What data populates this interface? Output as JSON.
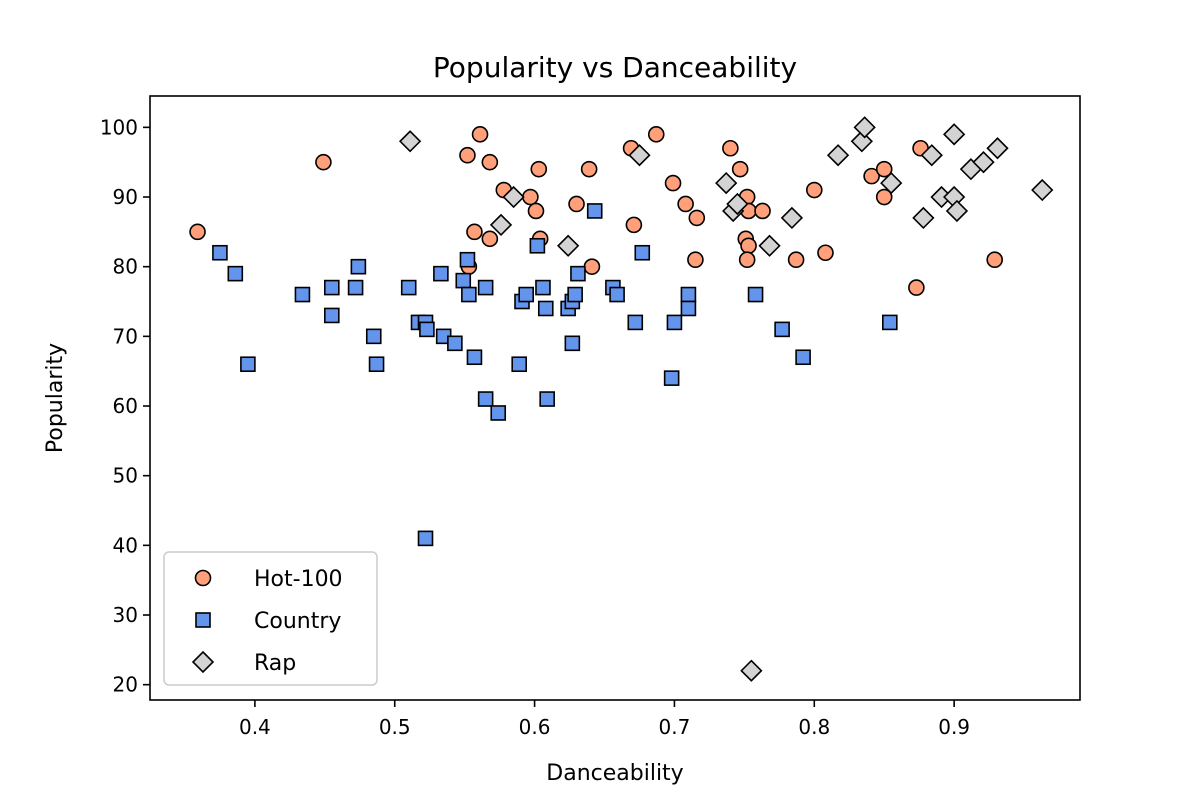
{
  "chart_data": {
    "type": "scatter",
    "title": "Popularity vs Danceability",
    "xlabel": "Danceability",
    "ylabel": "Popularity",
    "xlim": [
      0.325,
      0.99
    ],
    "ylim": [
      17.8,
      104.5
    ],
    "xticks": [
      "0.4",
      "0.5",
      "0.6",
      "0.7",
      "0.8",
      "0.9"
    ],
    "yticks": [
      "20",
      "30",
      "40",
      "50",
      "60",
      "70",
      "80",
      "90",
      "100"
    ],
    "grid": false,
    "legend_position": "lower-left",
    "series": [
      {
        "name": "Hot-100",
        "marker": "circle",
        "color": "#FFA07A",
        "points": [
          [
            0.359,
            85
          ],
          [
            0.449,
            95
          ],
          [
            0.552,
            96
          ],
          [
            0.553,
            80
          ],
          [
            0.557,
            85
          ],
          [
            0.561,
            99
          ],
          [
            0.568,
            84
          ],
          [
            0.568,
            95
          ],
          [
            0.578,
            91
          ],
          [
            0.597,
            90
          ],
          [
            0.601,
            88
          ],
          [
            0.603,
            94
          ],
          [
            0.604,
            84
          ],
          [
            0.63,
            89
          ],
          [
            0.639,
            94
          ],
          [
            0.641,
            80
          ],
          [
            0.669,
            97
          ],
          [
            0.671,
            86
          ],
          [
            0.687,
            99
          ],
          [
            0.699,
            92
          ],
          [
            0.708,
            89
          ],
          [
            0.716,
            87
          ],
          [
            0.715,
            81
          ],
          [
            0.74,
            97
          ],
          [
            0.747,
            94
          ],
          [
            0.751,
            84
          ],
          [
            0.752,
            90
          ],
          [
            0.753,
            88
          ],
          [
            0.753,
            83
          ],
          [
            0.752,
            81
          ],
          [
            0.763,
            88
          ],
          [
            0.787,
            81
          ],
          [
            0.8,
            91
          ],
          [
            0.808,
            82
          ],
          [
            0.841,
            93
          ],
          [
            0.85,
            94
          ],
          [
            0.85,
            90
          ],
          [
            0.873,
            77
          ],
          [
            0.876,
            97
          ],
          [
            0.929,
            81
          ]
        ]
      },
      {
        "name": "Country",
        "marker": "square",
        "color": "#6495ED",
        "points": [
          [
            0.375,
            82
          ],
          [
            0.386,
            79
          ],
          [
            0.395,
            66
          ],
          [
            0.434,
            76
          ],
          [
            0.455,
            77
          ],
          [
            0.455,
            73
          ],
          [
            0.472,
            77
          ],
          [
            0.474,
            80
          ],
          [
            0.485,
            70
          ],
          [
            0.487,
            66
          ],
          [
            0.51,
            77
          ],
          [
            0.517,
            72
          ],
          [
            0.522,
            72
          ],
          [
            0.523,
            71
          ],
          [
            0.522,
            41
          ],
          [
            0.533,
            79
          ],
          [
            0.535,
            70
          ],
          [
            0.543,
            69
          ],
          [
            0.549,
            78
          ],
          [
            0.552,
            81
          ],
          [
            0.553,
            76
          ],
          [
            0.557,
            67
          ],
          [
            0.565,
            77
          ],
          [
            0.565,
            61
          ],
          [
            0.574,
            59
          ],
          [
            0.589,
            66
          ],
          [
            0.591,
            75
          ],
          [
            0.594,
            76
          ],
          [
            0.602,
            83
          ],
          [
            0.606,
            77
          ],
          [
            0.608,
            74
          ],
          [
            0.609,
            61
          ],
          [
            0.624,
            74
          ],
          [
            0.627,
            75
          ],
          [
            0.627,
            69
          ],
          [
            0.629,
            76
          ],
          [
            0.631,
            79
          ],
          [
            0.643,
            88
          ],
          [
            0.656,
            77
          ],
          [
            0.659,
            76
          ],
          [
            0.672,
            72
          ],
          [
            0.677,
            82
          ],
          [
            0.698,
            64
          ],
          [
            0.7,
            72
          ],
          [
            0.71,
            76
          ],
          [
            0.71,
            74
          ],
          [
            0.758,
            76
          ],
          [
            0.777,
            71
          ],
          [
            0.792,
            67
          ],
          [
            0.854,
            72
          ]
        ]
      },
      {
        "name": "Rap",
        "marker": "diamond",
        "color": "#D3D3D3",
        "points": [
          [
            0.511,
            98
          ],
          [
            0.576,
            86
          ],
          [
            0.585,
            90
          ],
          [
            0.624,
            83
          ],
          [
            0.675,
            96
          ],
          [
            0.737,
            92
          ],
          [
            0.742,
            88
          ],
          [
            0.745,
            89
          ],
          [
            0.755,
            22
          ],
          [
            0.768,
            83
          ],
          [
            0.784,
            87
          ],
          [
            0.817,
            96
          ],
          [
            0.834,
            98
          ],
          [
            0.836,
            100
          ],
          [
            0.855,
            92
          ],
          [
            0.878,
            87
          ],
          [
            0.884,
            96
          ],
          [
            0.891,
            90
          ],
          [
            0.9,
            99
          ],
          [
            0.9,
            90
          ],
          [
            0.902,
            88
          ],
          [
            0.912,
            94
          ],
          [
            0.921,
            95
          ],
          [
            0.931,
            97
          ],
          [
            0.963,
            91
          ]
        ]
      }
    ]
  }
}
